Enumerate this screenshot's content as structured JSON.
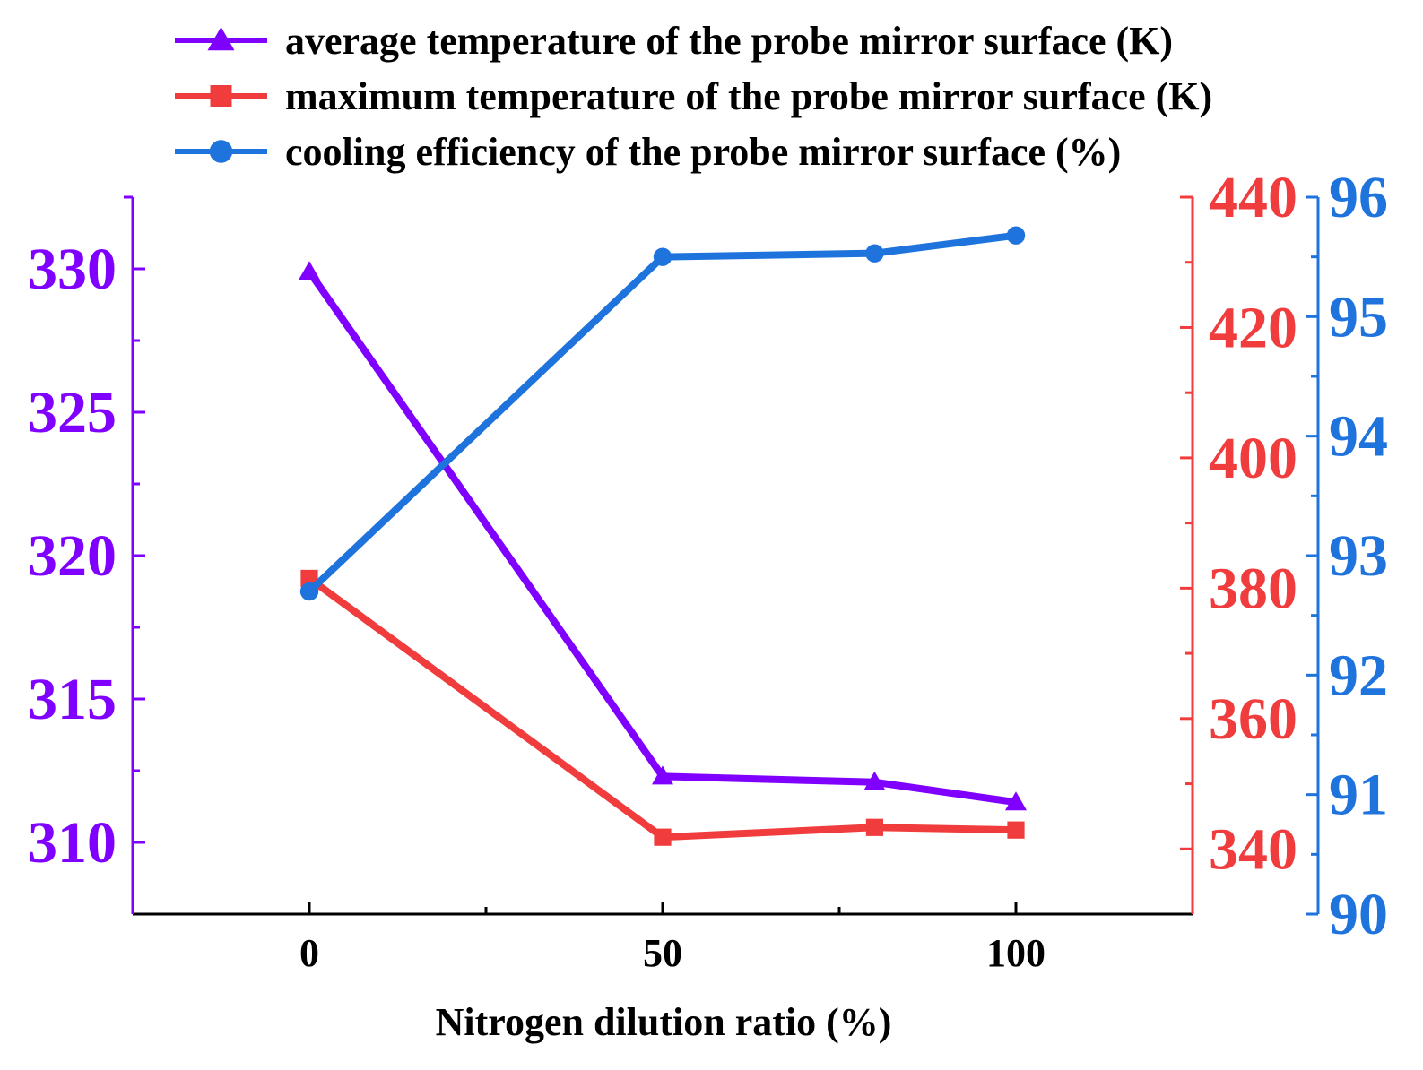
{
  "chart_data": {
    "type": "line",
    "title": "",
    "xlabel": "Nitrogen dilution ratio (%)",
    "x": [
      0,
      50,
      80,
      100
    ],
    "xlim": [
      -25,
      125
    ],
    "x_ticks": [
      0,
      50,
      100
    ],
    "x_tick_labels": [
      "0",
      "50",
      "100"
    ],
    "x_minor_ticks": [
      25,
      75
    ],
    "grid": false,
    "legend_position": "top",
    "axes": {
      "left": {
        "color": "#8000ff",
        "ylim": [
          307.5,
          332.5
        ],
        "ticks": [
          310,
          315,
          320,
          325,
          330
        ],
        "tick_labels": [
          "310",
          "315",
          "320",
          "325",
          "330"
        ]
      },
      "right_inner": {
        "color": "#f03c3c",
        "ylim": [
          330,
          440
        ],
        "ticks": [
          340,
          360,
          380,
          400,
          420,
          440
        ],
        "tick_labels": [
          "340",
          "360",
          "380",
          "400",
          "420",
          "440"
        ]
      },
      "right_outer": {
        "color": "#1e73dc",
        "ylim": [
          90,
          96
        ],
        "ticks": [
          90,
          91,
          92,
          93,
          94,
          95,
          96
        ],
        "tick_labels": [
          "90",
          "91",
          "92",
          "93",
          "94",
          "95",
          "96"
        ]
      }
    },
    "series": [
      {
        "name": "average temperature of the probe mirror surface (K)",
        "axis": "left",
        "color": "#8000ff",
        "marker": "triangle",
        "values": [
          329.9,
          312.3,
          312.1,
          311.4
        ]
      },
      {
        "name": "maximum temperature of the probe mirror surface (K)",
        "axis": "right_inner",
        "color": "#f03c3c",
        "marker": "square",
        "values": [
          381.5,
          341.8,
          343.3,
          342.9
        ]
      },
      {
        "name": "cooling efficiency of the probe mirror surface (%)",
        "axis": "right_outer",
        "color": "#1e73dc",
        "marker": "circle",
        "values": [
          92.7,
          95.5,
          95.53,
          95.68
        ]
      }
    ]
  }
}
